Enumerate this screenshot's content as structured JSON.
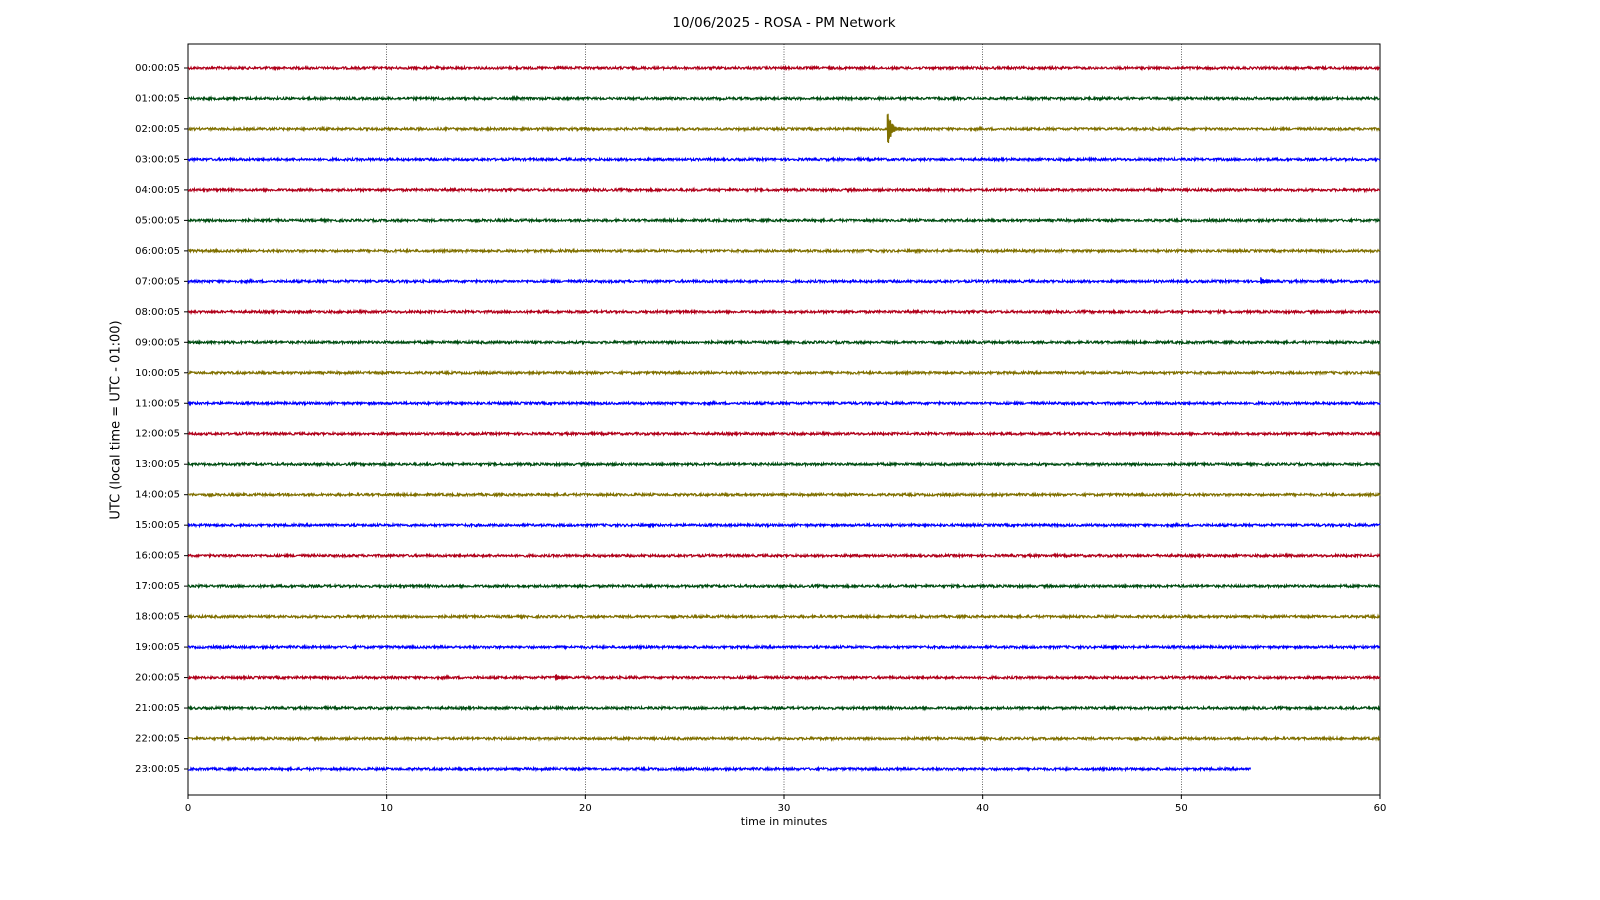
{
  "chart_data": {
    "type": "helicorder",
    "title": "10/06/2025 - ROSA - PM Network",
    "x_label": "time in minutes",
    "y_label": "UTC (local time = UTC - 01:00)",
    "xlim": [
      0,
      60
    ],
    "xticks": [
      0,
      10,
      20,
      30,
      40,
      50,
      60
    ],
    "grid": true,
    "categories": [
      "00:00:05",
      "01:00:05",
      "02:00:05",
      "03:00:05",
      "04:00:05",
      "05:00:05",
      "06:00:05",
      "07:00:05",
      "08:00:05",
      "09:00:05",
      "10:00:05",
      "11:00:05",
      "12:00:05",
      "13:00:05",
      "14:00:05",
      "15:00:05",
      "16:00:05",
      "17:00:05",
      "18:00:05",
      "19:00:05",
      "20:00:05",
      "21:00:05",
      "22:00:05",
      "23:00:05"
    ],
    "colors": [
      "#b0001a",
      "#004d12",
      "#807000",
      "#0000ff",
      "#b0001a",
      "#004d12",
      "#807000",
      "#0000ff",
      "#b0001a",
      "#004d12",
      "#807000",
      "#0000ff",
      "#b0001a",
      "#004d12",
      "#807000",
      "#0000ff",
      "#b0001a",
      "#004d12",
      "#807000",
      "#0000ff",
      "#b0001a",
      "#004d12",
      "#807000",
      "#0000ff"
    ],
    "ends": [
      60,
      60,
      60,
      60,
      60,
      60,
      60,
      60,
      60,
      60,
      60,
      60,
      60,
      60,
      60,
      60,
      60,
      60,
      60,
      60,
      60,
      60,
      60,
      53.5
    ],
    "events": [
      {
        "row": "02:00:05",
        "minute": 35.2
      },
      {
        "row": "07:00:05",
        "minute": 54
      },
      {
        "row": "20:00:05",
        "minute": 18.5
      }
    ]
  }
}
